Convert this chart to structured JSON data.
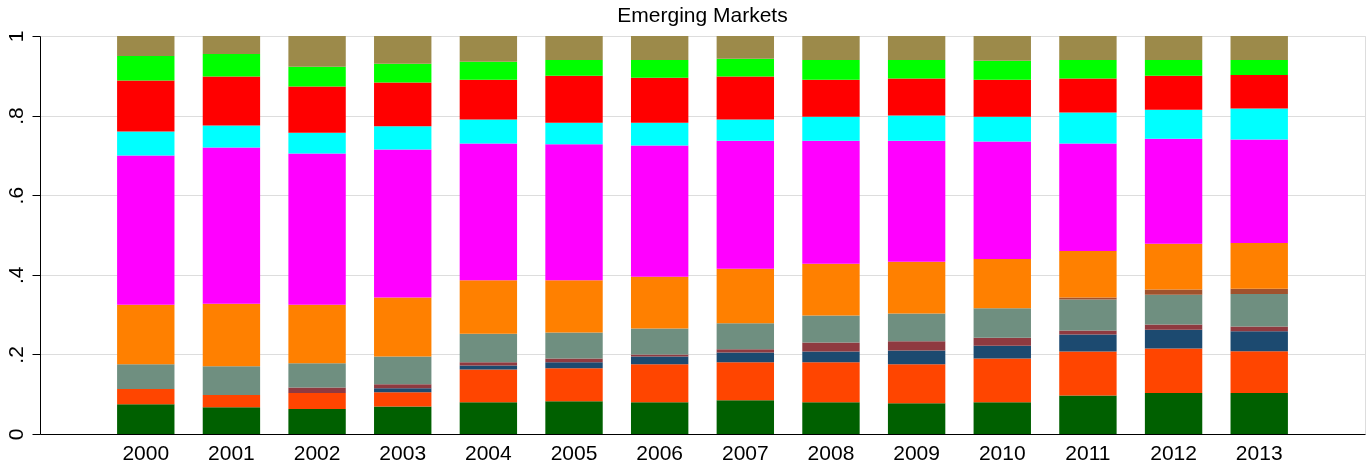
{
  "chart_data": {
    "type": "bar",
    "title": "Emerging Markets",
    "stacked": true,
    "grid": "y",
    "legend": false,
    "categories": [
      "2000",
      "2001",
      "2002",
      "2003",
      "2004",
      "2005",
      "2006",
      "2007",
      "2008",
      "2009",
      "2010",
      "2011",
      "2012",
      "2013"
    ],
    "ylim": [
      0,
      1
    ],
    "yticks": [
      0,
      {
        "value": 0.2,
        "label": ".2"
      },
      {
        "value": 0.4,
        "label": ".4"
      },
      {
        "value": 0.6,
        "label": ".6"
      },
      {
        "value": 0.8,
        "label": ".8"
      },
      1
    ],
    "series": [
      {
        "color": "#006000",
        "values": [
          0.075,
          0.067,
          0.063,
          0.069,
          0.08,
          0.082,
          0.08,
          0.085,
          0.08,
          0.077,
          0.08,
          0.097,
          0.103,
          0.103
        ]
      },
      {
        "color": "#ff4500",
        "values": [
          0.038,
          0.031,
          0.04,
          0.036,
          0.082,
          0.083,
          0.095,
          0.095,
          0.1,
          0.098,
          0.11,
          0.11,
          0.112,
          0.105
        ]
      },
      {
        "color": "#1c4a70",
        "values": [
          0,
          0,
          0,
          0.01,
          0.01,
          0.015,
          0.02,
          0.025,
          0.027,
          0.035,
          0.032,
          0.043,
          0.047,
          0.05
        ]
      },
      {
        "color": "#8f3a40",
        "values": [
          0,
          0,
          0.014,
          0.01,
          0.008,
          0.01,
          0.005,
          0.008,
          0.023,
          0.023,
          0.02,
          0.01,
          0.013,
          0.012
        ]
      },
      {
        "color": "#6f8f80",
        "values": [
          0.062,
          0.072,
          0.061,
          0.07,
          0.072,
          0.065,
          0.065,
          0.065,
          0.068,
          0.07,
          0.074,
          0.078,
          0.075,
          0.082
        ]
      },
      {
        "color": "#a0522d",
        "values": [
          0,
          0,
          0,
          0,
          0,
          0,
          0,
          0,
          0,
          0,
          0,
          0.005,
          0.013,
          0.013
        ]
      },
      {
        "color": "#ff8000",
        "values": [
          0.15,
          0.157,
          0.147,
          0.148,
          0.134,
          0.131,
          0.13,
          0.137,
          0.13,
          0.13,
          0.124,
          0.117,
          0.115,
          0.115
        ]
      },
      {
        "color": "#ff00ff",
        "values": [
          0.375,
          0.393,
          0.38,
          0.372,
          0.344,
          0.342,
          0.33,
          0.322,
          0.309,
          0.304,
          0.295,
          0.27,
          0.264,
          0.26
        ]
      },
      {
        "color": "#00ffff",
        "values": [
          0.06,
          0.055,
          0.052,
          0.058,
          0.06,
          0.054,
          0.057,
          0.053,
          0.06,
          0.063,
          0.062,
          0.078,
          0.073,
          0.078
        ]
      },
      {
        "color": "#ff0000",
        "values": [
          0.128,
          0.123,
          0.116,
          0.11,
          0.1,
          0.118,
          0.113,
          0.108,
          0.093,
          0.093,
          0.093,
          0.085,
          0.085,
          0.084
        ]
      },
      {
        "color": "#00ff00",
        "values": [
          0.062,
          0.057,
          0.05,
          0.047,
          0.045,
          0.04,
          0.045,
          0.045,
          0.05,
          0.047,
          0.048,
          0.047,
          0.04,
          0.038
        ]
      },
      {
        "color": "#9c8a4a",
        "values": [
          0.05,
          0.045,
          0.077,
          0.07,
          0.065,
          0.06,
          0.06,
          0.057,
          0.06,
          0.06,
          0.062,
          0.06,
          0.06,
          0.06
        ]
      }
    ]
  }
}
